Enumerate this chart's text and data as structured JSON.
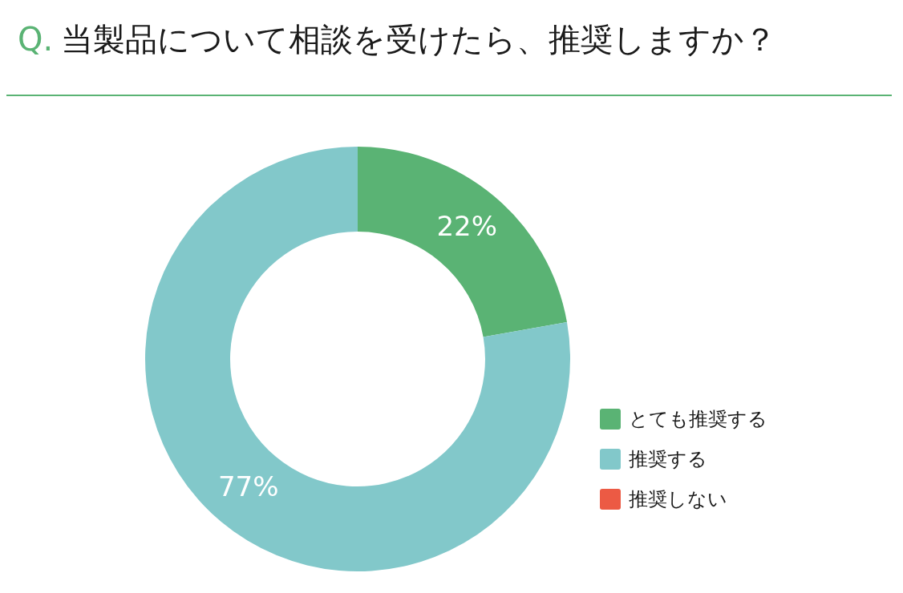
{
  "chart_data": {
    "type": "donut",
    "title": "Q. 当製品について相談を受けたら、推奨しますか？",
    "categories": [
      "とても推奨する",
      "推奨する",
      "推奨しない"
    ],
    "values": [
      22,
      77,
      0
    ],
    "colors": [
      "#5ab374",
      "#82c8ca",
      "#ec5a44"
    ],
    "value_labels": [
      "22%",
      "77%",
      null
    ],
    "legend": "bottom right"
  }
}
